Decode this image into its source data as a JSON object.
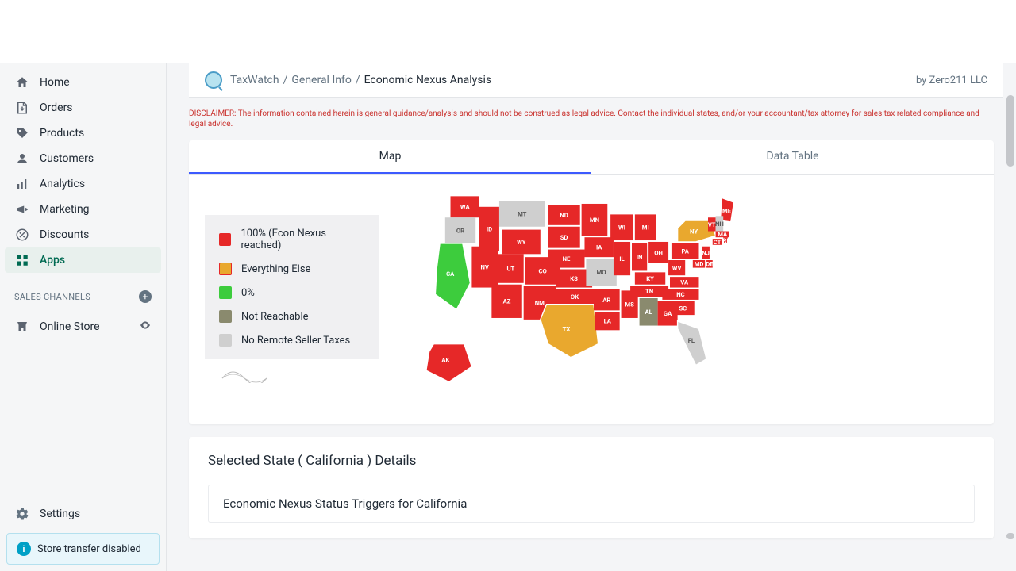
{
  "sidebar": {
    "items": [
      {
        "label": "Home",
        "icon": "home"
      },
      {
        "label": "Orders",
        "icon": "orders"
      },
      {
        "label": "Products",
        "icon": "tag"
      },
      {
        "label": "Customers",
        "icon": "person"
      },
      {
        "label": "Analytics",
        "icon": "bars"
      },
      {
        "label": "Marketing",
        "icon": "megaphone"
      },
      {
        "label": "Discounts",
        "icon": "discount"
      },
      {
        "label": "Apps",
        "icon": "apps",
        "active": true
      }
    ],
    "section_header": "SALES CHANNELS",
    "channels": [
      {
        "label": "Online Store",
        "icon": "store"
      }
    ],
    "settings_label": "Settings",
    "store_transfer_label": "Store transfer disabled"
  },
  "breadcrumb": {
    "parts": [
      "TaxWatch",
      "General Info",
      "Economic Nexus Analysis"
    ],
    "current_index": 2
  },
  "byline": "by Zero211 LLC",
  "disclaimer": "DISCLAIMER: The information contained herein is general guidance/analysis and should not be construed as legal advice. Contact the individual states, and/or your accountant/tax attorney for sales tax related compliance and legal advice.",
  "tabs": {
    "map": "Map",
    "table": "Data Table",
    "active": "map"
  },
  "legend": [
    {
      "color": "#e62828",
      "label": "100% (Econ Nexus reached)"
    },
    {
      "color": "#e9a82e",
      "label": "Everything Else",
      "border": "#e62828"
    },
    {
      "color": "#3dcc3d",
      "label": "0%"
    },
    {
      "color": "#8a8a6e",
      "label": "Not Reachable"
    },
    {
      "color": "#cfcfcf",
      "label": "No Remote Seller Taxes"
    }
  ],
  "colors": {
    "nexus": "#e62828",
    "else": "#e9a82e",
    "zero": "#3dcc3d",
    "notreach": "#8a8a6e",
    "noremote": "#cfcfcf"
  },
  "selected_state": "California",
  "detail_title_prefix": "Selected State ( ",
  "detail_title_suffix": " ) Details",
  "detail_subtitle_prefix": "Economic Nexus Status Triggers for ",
  "states": {
    "WA": "nexus",
    "OR": "noremote",
    "CA": "zero",
    "ID": "nexus",
    "NV": "nexus",
    "MT": "noremote",
    "WY": "nexus",
    "UT": "nexus",
    "AZ": "nexus",
    "CO": "nexus",
    "NM": "nexus",
    "ND": "nexus",
    "SD": "nexus",
    "NE": "nexus",
    "KS": "nexus",
    "OK": "nexus",
    "TX": "else",
    "MN": "nexus",
    "IA": "nexus",
    "MO": "noremote",
    "AR": "nexus",
    "LA": "nexus",
    "WI": "nexus",
    "IL": "nexus",
    "MS": "nexus",
    "MI": "nexus",
    "IN": "nexus",
    "OH": "nexus",
    "KY": "nexus",
    "TN": "nexus",
    "AL": "notreach",
    "WV": "nexus",
    "VA": "nexus",
    "NC": "nexus",
    "SC": "nexus",
    "GA": "nexus",
    "FL": "noremote",
    "PA": "nexus",
    "NY": "else",
    "ME": "nexus",
    "AK": "nexus",
    "VT": "nexus",
    "NH": "noremote",
    "MA": "nexus",
    "CT": "nexus",
    "NJ": "nexus",
    "DE": "nexus",
    "MD": "nexus",
    "RI": "nexus"
  }
}
